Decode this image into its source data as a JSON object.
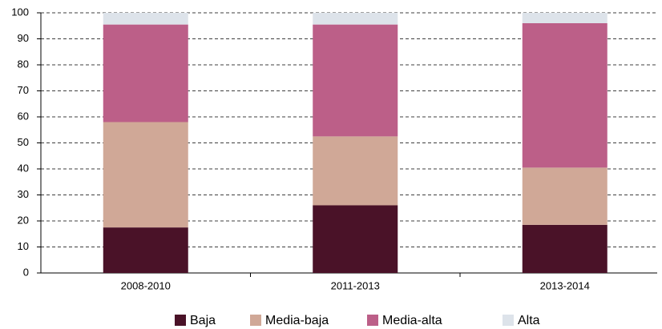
{
  "chart_data": {
    "type": "stacked_bar",
    "categories": [
      "2008-2010",
      "2011-2013",
      "2013-2014"
    ],
    "series": [
      {
        "name": "Baja",
        "color": "#4a1228",
        "values": [
          17.5,
          26,
          18.5
        ]
      },
      {
        "name": "Media-baja",
        "color": "#d0a897",
        "values": [
          40.5,
          26.5,
          22
        ]
      },
      {
        "name": "Media-alta",
        "color": "#bc5f88",
        "values": [
          37.5,
          43,
          55.5
        ]
      },
      {
        "name": "Alta",
        "color": "#dde3ea",
        "values": [
          4.5,
          4.5,
          4
        ]
      }
    ],
    "ylim": [
      0,
      100
    ],
    "yticks": [
      0,
      10,
      20,
      30,
      40,
      50,
      60,
      70,
      80,
      90,
      100
    ],
    "grid": true,
    "legend": "bottom"
  }
}
